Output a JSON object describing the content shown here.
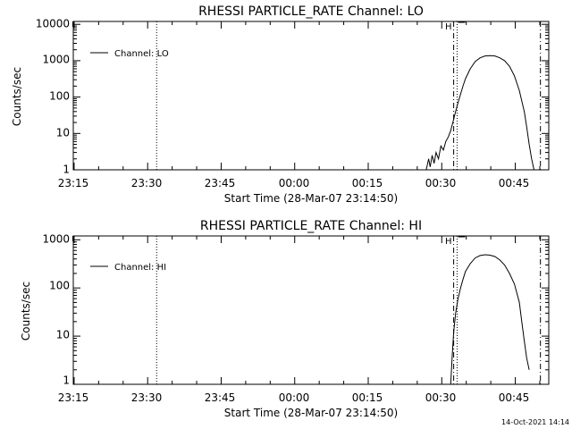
{
  "chart_data": [
    {
      "type": "line",
      "title": "RHESSI PARTICLE_RATE Channel: LO",
      "xlabel": "Start Time (28-Mar-07 23:14:50)",
      "ylabel": "Counts/sec",
      "yscale": "log",
      "xlim_minutes": [
        0,
        97
      ],
      "ylim": [
        1,
        12000
      ],
      "x_tick_labels": [
        "23:15",
        "23:30",
        "23:45",
        "00:00",
        "00:15",
        "00:30",
        "00:45"
      ],
      "x_tick_minutes": [
        0.17,
        15.17,
        30.17,
        45.17,
        60.17,
        75.17,
        90.17
      ],
      "y_tick_labels": [
        "1",
        "10",
        "100",
        "1000",
        "10000"
      ],
      "y_tick_values": [
        1,
        10,
        100,
        1000,
        10000
      ],
      "legend": [
        "Channel: LO"
      ],
      "vlines": [
        {
          "style": "dotted",
          "x_minute": 17.0
        },
        {
          "style": "dashdot",
          "x_minute": 77.6
        },
        {
          "style": "dotted",
          "x_minute": 78.3
        },
        {
          "style": "dashdot",
          "x_minute": 95.3
        }
      ],
      "flag_label": "H",
      "flag_x_minute": 78.5,
      "series": [
        {
          "name": "Channel: LO",
          "x": [
            72.0,
            72.5,
            72.8,
            73.2,
            73.6,
            74.0,
            74.5,
            75.0,
            75.5,
            76.0,
            76.5,
            77.0,
            77.5,
            78.0,
            78.5,
            79.0,
            79.5,
            80.0,
            81.0,
            82.0,
            83.0,
            84.0,
            85.0,
            86.0,
            87.0,
            88.0,
            89.0,
            90.0,
            91.0,
            92.0,
            92.5,
            93.0,
            93.5,
            94.0
          ],
          "values": [
            1.0,
            2.0,
            1.2,
            2.5,
            1.5,
            3.0,
            2.0,
            4.5,
            3.5,
            6.0,
            8.0,
            12.0,
            22.0,
            40.0,
            70.0,
            120.0,
            200.0,
            320.0,
            600.0,
            950.0,
            1200.0,
            1350.0,
            1380.0,
            1350.0,
            1200.0,
            1000.0,
            700.0,
            380.0,
            150.0,
            40.0,
            15.0,
            5.0,
            2.0,
            1.0
          ]
        }
      ]
    },
    {
      "type": "line",
      "title": "RHESSI PARTICLE_RATE Channel: HI",
      "xlabel": "Start Time (28-Mar-07 23:14:50)",
      "ylabel": "Counts/sec",
      "yscale": "log",
      "xlim_minutes": [
        0,
        97
      ],
      "ylim": [
        1,
        1200
      ],
      "x_tick_labels": [
        "23:15",
        "23:30",
        "23:45",
        "00:00",
        "00:15",
        "00:30",
        "00:45"
      ],
      "x_tick_minutes": [
        0.17,
        15.17,
        30.17,
        45.17,
        60.17,
        75.17,
        90.17
      ],
      "y_tick_labels": [
        "1",
        "10",
        "100",
        "1000"
      ],
      "y_tick_values": [
        1,
        10,
        100,
        1000
      ],
      "legend": [
        "Channel: HI"
      ],
      "vlines": [
        {
          "style": "dotted",
          "x_minute": 17.0
        },
        {
          "style": "dashdot",
          "x_minute": 77.6
        },
        {
          "style": "dotted",
          "x_minute": 78.3
        },
        {
          "style": "dashdot",
          "x_minute": 95.3
        }
      ],
      "flag_label": "H",
      "flag_x_minute": 78.5,
      "series": [
        {
          "name": "Channel: HI",
          "x": [
            77.0,
            77.3,
            77.6,
            78.0,
            78.5,
            79.0,
            79.5,
            80.0,
            81.0,
            82.0,
            83.0,
            84.0,
            85.0,
            86.0,
            87.0,
            88.0,
            89.0,
            90.0,
            91.0,
            91.5,
            92.0,
            92.5,
            93.0
          ],
          "values": [
            1.0,
            4.0,
            12.0,
            30.0,
            60.0,
            100.0,
            150.0,
            220.0,
            320.0,
            420.0,
            470.0,
            490.0,
            480.0,
            450.0,
            380.0,
            300.0,
            200.0,
            120.0,
            50.0,
            20.0,
            8.0,
            3.5,
            2.0
          ]
        }
      ]
    }
  ],
  "timestamp": "14-Oct-2021 14:14"
}
